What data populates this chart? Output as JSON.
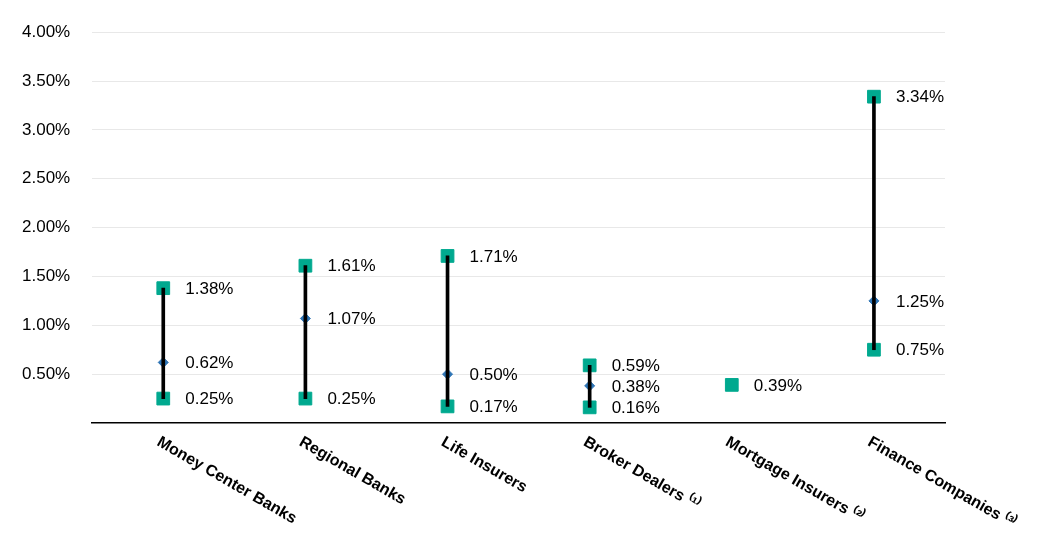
{
  "chart_data": {
    "type": "bar",
    "categories": [
      "Money Center Banks",
      "Regional Banks",
      "Life Insurers",
      "Broker Dealers ⁽¹⁾",
      "Mortgage Insurers ⁽²⁾",
      "Finance Companies ⁽³⁾"
    ],
    "series": [
      {
        "color": "#000000",
        "base": [
          0.25,
          0.25,
          0.17,
          0.16,
          null,
          0.75
        ],
        "values": [
          1.13,
          1.36,
          1.54,
          0.43,
          null,
          2.59
        ]
      },
      {
        "type": "scatter",
        "color": "#00a98f",
        "marker": "square",
        "values": [
          1.38,
          1.61,
          1.71,
          0.59,
          0.39,
          3.34
        ],
        "value_labels": [
          "1.38%",
          "1.61%",
          "1.71%",
          "0.59%",
          "0.39%",
          "3.34%"
        ]
      },
      {
        "type": "scatter",
        "color": "#00a98f",
        "marker": "square",
        "values": [
          0.25,
          0.25,
          0.17,
          0.16,
          null,
          0.75
        ],
        "value_labels": [
          "0.25%",
          "0.25%",
          "0.17%",
          "0.16%",
          null,
          "0.75%"
        ]
      },
      {
        "type": "scatter",
        "color": "#2e75b6",
        "marker": "diamond",
        "values": [
          0.62,
          1.07,
          0.5,
          0.38,
          null,
          1.25
        ],
        "value_labels": [
          "0.62%",
          "1.07%",
          "0.50%",
          "0.38%",
          null,
          "1.25%"
        ]
      }
    ],
    "ylim": [
      0,
      4
    ],
    "yticks": [
      {
        "value": 0.5,
        "label": "0.50%"
      },
      {
        "value": 1,
        "label": "1.00%"
      },
      {
        "value": 1.5,
        "label": "1.50%"
      },
      {
        "value": 2,
        "label": "2.00%"
      },
      {
        "value": 2.5,
        "label": "2.50%"
      },
      {
        "value": 3,
        "label": "3.00%"
      },
      {
        "value": 3.5,
        "label": "3.50%"
      },
      {
        "value": 4,
        "label": "4.00%"
      }
    ],
    "grid": "y",
    "legend": false
  }
}
